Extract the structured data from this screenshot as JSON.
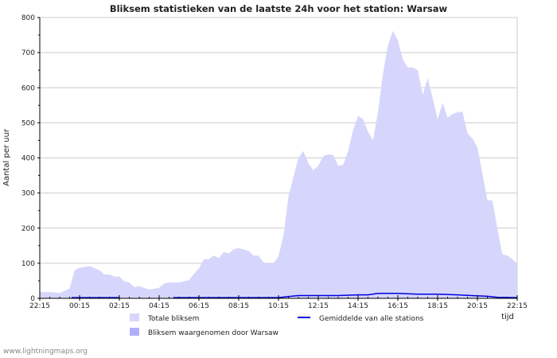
{
  "footer": "www.lightningmaps.org",
  "chart_data": {
    "type": "area",
    "title": "Bliksem statistieken van de laatste 24h voor het station: Warsaw",
    "ylabel": "Aantal per uur",
    "xlabel": "tijd",
    "ylim": [
      0,
      800
    ],
    "yticks": [
      0,
      100,
      200,
      300,
      400,
      500,
      600,
      700,
      800
    ],
    "xtick_labels": [
      "22:15",
      "00:15",
      "02:15",
      "04:15",
      "06:15",
      "08:15",
      "10:15",
      "12:15",
      "14:15",
      "16:15",
      "18:15",
      "20:15",
      "22:15"
    ],
    "x_hours": [
      0,
      0.5,
      1,
      1.5,
      1.75,
      2,
      2.5,
      3,
      3.25,
      3.5,
      3.75,
      4,
      4.25,
      4.5,
      4.75,
      5,
      5.5,
      6,
      6.25,
      6.5,
      7,
      7.5,
      7.75,
      8,
      8.25,
      8.5,
      8.75,
      9,
      9.25,
      9.5,
      9.75,
      10,
      10.5,
      10.75,
      11,
      11.25,
      11.5,
      11.75,
      12,
      12.25,
      12.5,
      13,
      13.25,
      13.5,
      13.75,
      14,
      14.25,
      14.5,
      14.75,
      15,
      15.25,
      15.5,
      15.75,
      16,
      16.25,
      16.5,
      16.75,
      17,
      17.25,
      17.5,
      17.75,
      18,
      18.25,
      18.5,
      18.75,
      19,
      19.25,
      19.5,
      19.75,
      20,
      20.25,
      20.5,
      20.75,
      21,
      21.25,
      21.5,
      21.75,
      22,
      22.25,
      22.5,
      22.75,
      23,
      23.25,
      23.5,
      23.75,
      24
    ],
    "series": [
      {
        "name": "Totale bliksem",
        "color": "#d6d6fc",
        "values": [
          18,
          18,
          15,
          28,
          80,
          87,
          92,
          80,
          68,
          68,
          62,
          62,
          48,
          45,
          32,
          35,
          25,
          30,
          42,
          45,
          45,
          52,
          70,
          85,
          112,
          112,
          122,
          115,
          132,
          128,
          140,
          143,
          135,
          122,
          122,
          102,
          100,
          100,
          120,
          180,
          290,
          400,
          420,
          385,
          365,
          378,
          405,
          410,
          408,
          378,
          380,
          420,
          480,
          520,
          510,
          475,
          450,
          530,
          640,
          720,
          762,
          735,
          680,
          658,
          658,
          650,
          580,
          628,
          570,
          510,
          557,
          515,
          525,
          530,
          532,
          470,
          455,
          430,
          355,
          280,
          278,
          200,
          125,
          122,
          112,
          98
        ]
      },
      {
        "name": "Bliksem waargenomen door Warsaw",
        "color": "#b0b0f8",
        "values": []
      },
      {
        "name": "Gemiddelde van alle stations",
        "color": "#0000dd",
        "x_hours": [
          1.6,
          4,
          4.01,
          6.7,
          6.71,
          12,
          12.5,
          13,
          14,
          15,
          16,
          16.5,
          17,
          18,
          19,
          20,
          21,
          22,
          22.5,
          23,
          24
        ],
        "values": [
          2,
          2,
          null,
          null,
          2,
          2,
          5,
          8,
          8,
          8,
          10,
          10,
          14,
          14,
          12,
          12,
          10,
          7,
          6,
          3,
          2
        ]
      }
    ]
  }
}
